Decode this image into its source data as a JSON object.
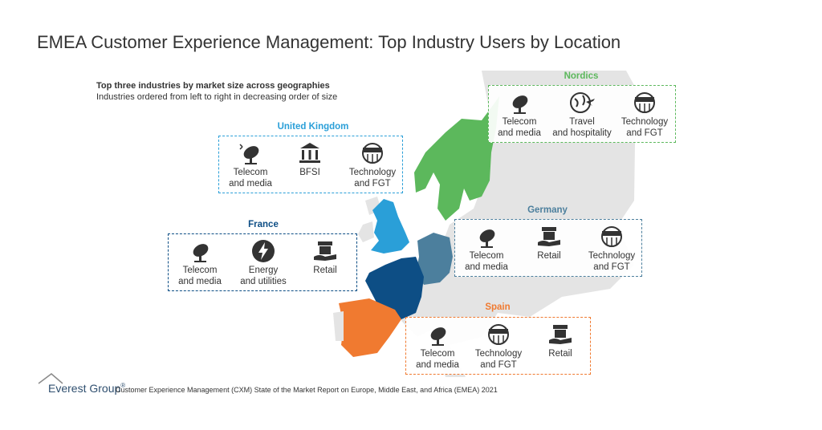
{
  "title": "EMEA Customer Experience Management: Top Industry Users by Location",
  "subtitle_bold": "Top three industries by market size across geographies",
  "subtitle": "Industries ordered from left to right in decreasing order of size",
  "colors": {
    "uk": "#2a9fd8",
    "france": "#0d4e85",
    "nordics": "#5cb85c",
    "germany": "#4c7f9d",
    "spain": "#f07a30",
    "land": "#e4e4e4"
  },
  "regions": {
    "uk": {
      "name": "United Kingdom",
      "items": [
        {
          "label": "Telecom and media",
          "icon": "satellite-dish-icon"
        },
        {
          "label": "BFSI",
          "icon": "bank-icon"
        },
        {
          "label": "Technology and FGT",
          "icon": "technology-globe-icon"
        }
      ]
    },
    "france": {
      "name": "France",
      "items": [
        {
          "label": "Telecom and media",
          "icon": "satellite-dish-icon"
        },
        {
          "label": "Energy and utilities",
          "icon": "lightning-icon"
        },
        {
          "label": "Retail",
          "icon": "retail-store-icon"
        }
      ]
    },
    "nordics": {
      "name": "Nordics",
      "items": [
        {
          "label": "Telecom and media",
          "icon": "satellite-dish-icon"
        },
        {
          "label": "Travel and hospitality",
          "icon": "travel-globe-icon"
        },
        {
          "label": "Technology and FGT",
          "icon": "technology-globe-icon"
        }
      ]
    },
    "germany": {
      "name": "Germany",
      "items": [
        {
          "label": "Telecom and media",
          "icon": "satellite-dish-icon"
        },
        {
          "label": "Retail",
          "icon": "retail-store-icon"
        },
        {
          "label": "Technology and FGT",
          "icon": "technology-globe-icon"
        }
      ]
    },
    "spain": {
      "name": "Spain",
      "items": [
        {
          "label": "Telecom and media",
          "icon": "satellite-dish-icon"
        },
        {
          "label": "Technology and FGT",
          "icon": "technology-globe-icon"
        },
        {
          "label": "Retail",
          "icon": "retail-store-icon"
        }
      ]
    }
  },
  "footer": {
    "logo": "Everest Group",
    "registered": "®",
    "source": "Customer Experience Management (CXM) State of the Market Report on Europe, Middle East, and Africa (EMEA) 2021"
  }
}
